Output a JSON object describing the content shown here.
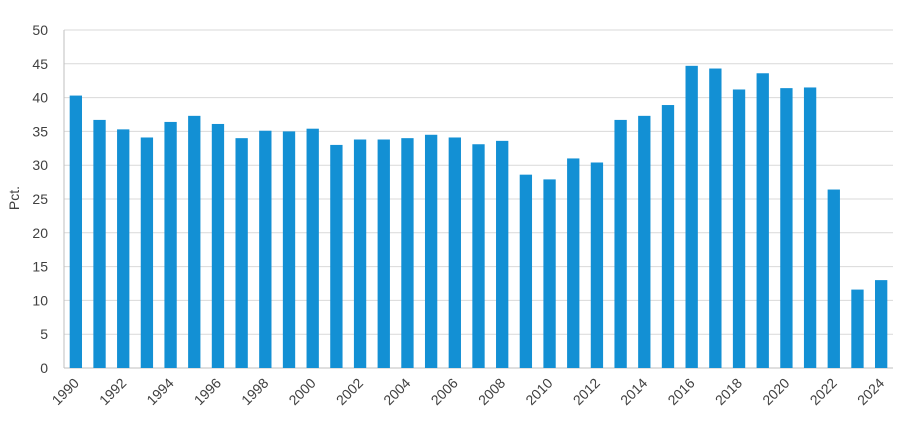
{
  "chart_data": {
    "type": "bar",
    "ylabel": "Pct.",
    "xlabel": "",
    "title": "",
    "ylim": [
      0,
      50
    ],
    "y_ticks": [
      0,
      5,
      10,
      15,
      20,
      25,
      30,
      35,
      40,
      45,
      50
    ],
    "x_tick_labels": [
      "1990",
      "1992",
      "1994",
      "1996",
      "1998",
      "2000",
      "2002",
      "2004",
      "2006",
      "2008",
      "2010",
      "2012",
      "2014",
      "2016",
      "2018",
      "2020",
      "2022",
      "2024"
    ],
    "grid": "horizontal",
    "bar_color": "#1390d4",
    "categories": [
      "1990",
      "1991",
      "1992",
      "1993",
      "1994",
      "1995",
      "1996",
      "1997",
      "1998",
      "1999",
      "2000",
      "2001",
      "2002",
      "2003",
      "2004",
      "2005",
      "2006",
      "2007",
      "2008",
      "2009",
      "2010",
      "2011",
      "2012",
      "2013",
      "2014",
      "2015",
      "2016",
      "2017",
      "2018",
      "2019",
      "2020",
      "2021",
      "2022",
      "2023",
      "2024"
    ],
    "values": [
      40.3,
      36.7,
      35.3,
      34.1,
      36.4,
      37.3,
      36.1,
      34.0,
      35.1,
      35.0,
      35.4,
      33.0,
      33.8,
      33.8,
      34.0,
      34.5,
      34.1,
      33.1,
      33.6,
      28.6,
      27.9,
      31.0,
      30.4,
      36.7,
      37.3,
      38.9,
      44.7,
      44.3,
      41.2,
      43.6,
      41.4,
      41.5,
      26.4,
      11.6,
      13.0
    ]
  }
}
